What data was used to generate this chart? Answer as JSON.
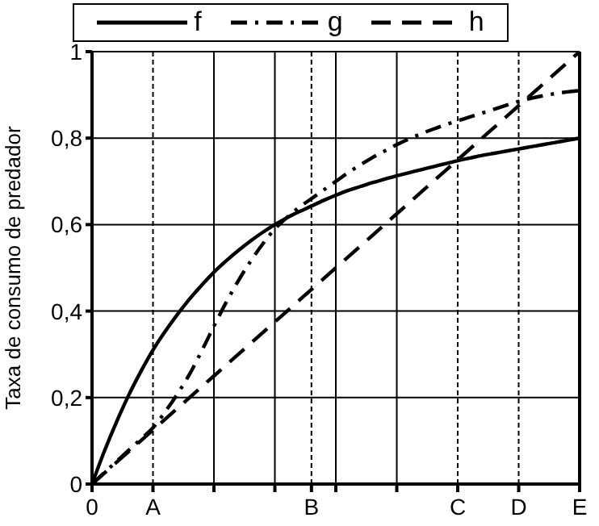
{
  "chart_data": {
    "type": "line",
    "ylabel": "Taxa de consumo de predador",
    "categories": [
      "0",
      null,
      null,
      null,
      null,
      "A",
      null,
      null,
      null,
      null,
      null,
      null,
      null,
      null,
      null,
      null,
      null,
      null,
      "B",
      null,
      null,
      null,
      null,
      null,
      null,
      null,
      null,
      null,
      null,
      null,
      "C",
      null,
      null,
      null,
      null,
      "D",
      null,
      null,
      null,
      null,
      "E"
    ],
    "series": [
      {
        "name": "f",
        "color": "#000000",
        "line_style": "solid",
        "values": [
          0,
          0.075,
          0.143,
          0.205,
          0.26,
          0.31,
          0.353,
          0.392,
          0.428,
          0.46,
          0.49,
          0.516,
          0.54,
          0.562,
          0.582,
          0.6,
          0.616,
          0.63,
          0.643,
          0.656,
          0.668,
          0.679,
          0.688,
          0.697,
          0.705,
          0.713,
          0.72,
          0.727,
          0.734,
          0.741,
          0.748,
          0.754,
          0.76,
          0.765,
          0.77,
          0.775,
          0.78,
          0.785,
          0.79,
          0.795,
          0.8
        ]
      },
      {
        "name": "g",
        "color": "#000000",
        "line_style": "dashdot",
        "values": [
          0,
          0.026,
          0.052,
          0.078,
          0.104,
          0.13,
          0.167,
          0.208,
          0.254,
          0.308,
          0.365,
          0.42,
          0.47,
          0.515,
          0.555,
          0.59,
          0.617,
          0.64,
          0.66,
          0.68,
          0.7,
          0.72,
          0.738,
          0.755,
          0.77,
          0.785,
          0.798,
          0.81,
          0.821,
          0.831,
          0.84,
          0.849,
          0.858,
          0.867,
          0.876,
          0.885,
          0.892,
          0.898,
          0.903,
          0.907,
          0.91
        ]
      },
      {
        "name": "h",
        "color": "#000000",
        "line_style": "dashed",
        "values": [
          0,
          0.025,
          0.05,
          0.075,
          0.1,
          0.125,
          0.15,
          0.175,
          0.2,
          0.225,
          0.25,
          0.275,
          0.3,
          0.325,
          0.35,
          0.375,
          0.4,
          0.425,
          0.45,
          0.475,
          0.5,
          0.525,
          0.55,
          0.575,
          0.6,
          0.625,
          0.65,
          0.675,
          0.7,
          0.725,
          0.75,
          0.775,
          0.8,
          0.825,
          0.85,
          0.875,
          0.9,
          0.925,
          0.95,
          0.975,
          1
        ]
      }
    ],
    "ylim": [
      0,
      1
    ],
    "yticks": [
      0,
      {
        "value": 0.2,
        "label": "0,2"
      },
      {
        "value": 0.4,
        "label": "0,4"
      },
      {
        "value": 0.6,
        "label": "0,6"
      },
      {
        "value": 0.8,
        "label": "0,8"
      },
      1
    ],
    "grid": true,
    "legend": "top",
    "marker": "none"
  }
}
